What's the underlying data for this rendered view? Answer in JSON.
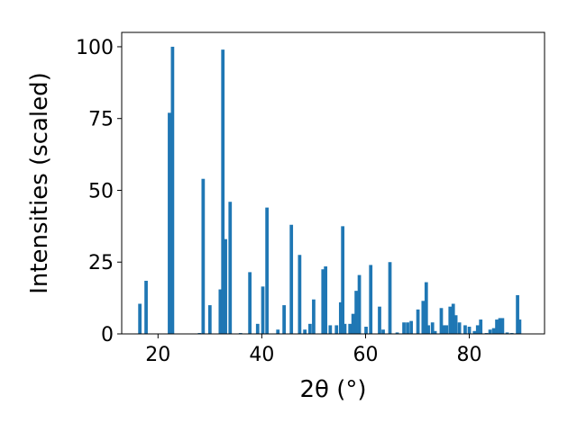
{
  "chart_data": {
    "type": "bar",
    "title": "",
    "xlabel": "2θ (°)",
    "ylabel": "Intensities (scaled)",
    "xlim": [
      13,
      94.5
    ],
    "ylim": [
      0,
      105
    ],
    "xticks": [
      20,
      40,
      60,
      80
    ],
    "yticks": [
      0,
      25,
      50,
      75,
      100
    ],
    "grid": false,
    "bar_color": "#1f77b4",
    "bar_width": 0.65,
    "x": [
      16.5,
      17.7,
      22.2,
      22.8,
      28.0,
      28.7,
      30.0,
      32.0,
      32.5,
      33.0,
      33.9,
      35.9,
      37.7,
      39.2,
      40.2,
      41.0,
      43.1,
      44.3,
      45.7,
      47.3,
      48.3,
      49.3,
      50.0,
      51.8,
      52.3,
      53.2,
      54.4,
      55.2,
      55.6,
      56.0,
      57.0,
      57.6,
      58.2,
      58.8,
      60.1,
      61.0,
      62.7,
      63.4,
      64.7,
      66.1,
      67.4,
      68.1,
      68.8,
      70.1,
      71.1,
      71.7,
      72.1,
      72.9,
      73.4,
      74.6,
      75.1,
      75.6,
      76.3,
      76.9,
      77.4,
      78.1,
      79.2,
      80.0,
      81.0,
      81.6,
      82.2,
      83.3,
      84.0,
      84.7,
      85.3,
      85.9,
      86.4,
      87.3,
      88.2,
      89.3,
      89.7
    ],
    "values": [
      10.5,
      18.5,
      77,
      100,
      0.3,
      54,
      10,
      15.5,
      99,
      33,
      46,
      0.3,
      21.5,
      3.5,
      16.5,
      44,
      1.5,
      10,
      38,
      27.5,
      1.5,
      3.5,
      12,
      22.5,
      23.5,
      3,
      3,
      11,
      37.5,
      3.5,
      3.5,
      7,
      15,
      20.5,
      2.5,
      24,
      9.5,
      1.5,
      25,
      0.5,
      4,
      4,
      4.5,
      8.5,
      11.5,
      18,
      3,
      4,
      1,
      9,
      3,
      3,
      9.5,
      10.5,
      6.5,
      4,
      3,
      2.5,
      1,
      3,
      5,
      0.3,
      1.5,
      2,
      5,
      5.5,
      5.5,
      0.5,
      0.3,
      13.5,
      5
    ]
  }
}
